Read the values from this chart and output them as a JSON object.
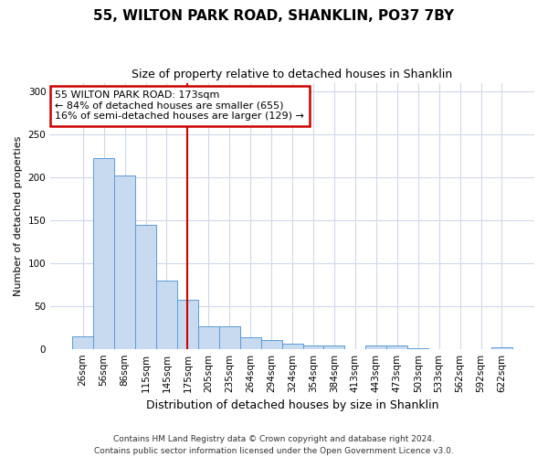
{
  "title": "55, WILTON PARK ROAD, SHANKLIN, PO37 7BY",
  "subtitle": "Size of property relative to detached houses in Shanklin",
  "xlabel": "Distribution of detached houses by size in Shanklin",
  "ylabel": "Number of detached properties",
  "bar_color": "#c8daf0",
  "bar_edge_color": "#5b9bd5",
  "categories": [
    "26sqm",
    "56sqm",
    "86sqm",
    "115sqm",
    "145sqm",
    "175sqm",
    "205sqm",
    "235sqm",
    "264sqm",
    "294sqm",
    "324sqm",
    "354sqm",
    "384sqm",
    "413sqm",
    "443sqm",
    "473sqm",
    "503sqm",
    "533sqm",
    "562sqm",
    "592sqm",
    "622sqm"
  ],
  "values": [
    15,
    222,
    202,
    144,
    80,
    57,
    26,
    26,
    13,
    10,
    6,
    4,
    4,
    0,
    4,
    4,
    1,
    0,
    0,
    0,
    2
  ],
  "ylim": [
    0,
    310
  ],
  "yticks": [
    0,
    50,
    100,
    150,
    200,
    250,
    300
  ],
  "vline_index": 5,
  "annotation_text": "55 WILTON PARK ROAD: 173sqm\n← 84% of detached houses are smaller (655)\n16% of semi-detached houses are larger (129) →",
  "annotation_box_color": "white",
  "annotation_border_color": "#cc0000",
  "vline_color": "#cc0000",
  "background_color": "white",
  "plot_bg_color": "white",
  "grid_color": "#d0d8e8",
  "footer": "Contains HM Land Registry data © Crown copyright and database right 2024.\nContains public sector information licensed under the Open Government Licence v3.0.",
  "title_fontsize": 11,
  "subtitle_fontsize": 9,
  "ylabel_fontsize": 8,
  "xlabel_fontsize": 9,
  "tick_fontsize": 7.5,
  "footer_fontsize": 6.5,
  "annot_fontsize": 8
}
